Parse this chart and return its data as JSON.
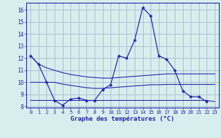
{
  "x": [
    0,
    1,
    2,
    3,
    4,
    5,
    6,
    7,
    8,
    9,
    10,
    11,
    12,
    13,
    14,
    15,
    16,
    17,
    18,
    19,
    20,
    21,
    22,
    23
  ],
  "line_main": [
    12.2,
    11.5,
    10.0,
    8.5,
    8.1,
    8.6,
    8.7,
    8.5,
    8.5,
    9.4,
    9.8,
    12.2,
    12.0,
    13.5,
    16.2,
    15.5,
    12.2,
    11.9,
    11.0,
    9.3,
    8.8,
    8.8,
    8.4,
    null
  ],
  "line_max": [
    12.2,
    11.5,
    11.2,
    11.0,
    10.8,
    10.65,
    10.55,
    10.45,
    10.4,
    10.35,
    10.35,
    10.4,
    10.45,
    10.5,
    10.55,
    10.6,
    10.65,
    10.7,
    10.7,
    10.7,
    10.7,
    10.7,
    10.7,
    10.7
  ],
  "line_mid": [
    10.0,
    10.0,
    10.0,
    10.0,
    9.85,
    9.75,
    9.65,
    9.55,
    9.5,
    9.5,
    9.55,
    9.6,
    9.65,
    9.7,
    9.75,
    9.8,
    9.8,
    9.82,
    9.82,
    9.82,
    9.82,
    9.82,
    9.82,
    9.82
  ],
  "line_min": [
    8.5,
    8.5,
    8.5,
    8.5,
    8.5,
    8.5,
    8.5,
    8.5,
    8.5,
    8.5,
    8.5,
    8.5,
    8.5,
    8.5,
    8.5,
    8.5,
    8.5,
    8.5,
    8.5,
    8.5,
    8.5,
    8.5,
    8.5,
    8.4
  ],
  "line_color": "#2222aa",
  "bg_color": "#d8eeee",
  "grid_color": "#99bbcc",
  "xlabel": "Graphe des températures (°C)",
  "ylim": [
    7.9,
    16.6
  ],
  "yticks": [
    8,
    9,
    10,
    11,
    12,
    13,
    14,
    15,
    16
  ],
  "xticks": [
    0,
    1,
    2,
    3,
    4,
    5,
    6,
    7,
    8,
    9,
    10,
    11,
    12,
    13,
    14,
    15,
    16,
    17,
    18,
    19,
    20,
    21,
    22,
    23
  ]
}
